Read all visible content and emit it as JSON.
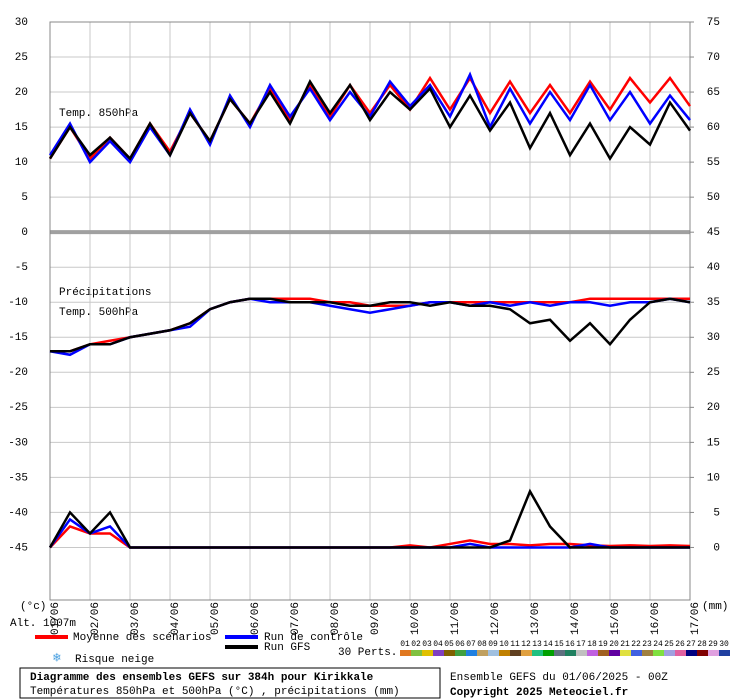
{
  "chart_data": {
    "type": "line",
    "labels": {
      "t850": "Temp. 850hPa",
      "precip": "Précipitations",
      "t500": "Temp. 500hPa",
      "y_unit": "(°c)",
      "y2_unit": "(mm)",
      "altitude": "Alt. 1007m",
      "snow": "Risque neige"
    },
    "x": [
      0,
      12,
      24,
      36,
      48,
      60,
      72,
      84,
      96,
      108,
      120,
      132,
      144,
      156,
      168,
      180,
      192,
      204,
      216,
      228,
      240,
      252,
      264,
      276,
      288,
      300,
      312,
      324,
      336,
      348,
      360,
      372,
      384
    ],
    "xlim": [
      0,
      384
    ],
    "xticks": [
      {
        "value": 0,
        "label": "01/06"
      },
      {
        "value": 24,
        "label": "02/06"
      },
      {
        "value": 48,
        "label": "03/06"
      },
      {
        "value": 72,
        "label": "04/06"
      },
      {
        "value": 96,
        "label": "05/06"
      },
      {
        "value": 120,
        "label": "06/06"
      },
      {
        "value": 144,
        "label": "07/06"
      },
      {
        "value": 168,
        "label": "08/06"
      },
      {
        "value": 192,
        "label": "09/06"
      },
      {
        "value": 216,
        "label": "10/06"
      },
      {
        "value": 240,
        "label": "11/06"
      },
      {
        "value": 264,
        "label": "12/06"
      },
      {
        "value": 288,
        "label": "13/06"
      },
      {
        "value": 312,
        "label": "14/06"
      },
      {
        "value": 336,
        "label": "15/06"
      },
      {
        "value": 360,
        "label": "16/06"
      },
      {
        "value": 384,
        "label": "17/06"
      }
    ],
    "ylim": [
      -52.5,
      30
    ],
    "yticks": [
      30,
      25,
      20,
      15,
      10,
      5,
      0,
      -5,
      -10,
      -15,
      -20,
      -25,
      -30,
      -35,
      -40,
      -45
    ],
    "y2lim": [
      -7.5,
      75
    ],
    "y2ticks": [
      75,
      70,
      65,
      60,
      55,
      50,
      45,
      40,
      35,
      30,
      25,
      20,
      15,
      10,
      5,
      0
    ],
    "grid": true,
    "series": [
      {
        "name": "Moyenne des scénarios",
        "color": "#ff0000",
        "t850": [
          10.5,
          15,
          10.5,
          13.5,
          10.5,
          15.5,
          11.5,
          17,
          13,
          19,
          15.5,
          20.5,
          16,
          21,
          16.5,
          21,
          17,
          21,
          17.5,
          22,
          17.5,
          22,
          17,
          21.5,
          17,
          21,
          17,
          21.5,
          17.5,
          22,
          18.5,
          22,
          18
        ],
        "t500": [
          -17,
          -17,
          -16,
          -15.5,
          -15,
          -14.5,
          -14,
          -13,
          -11,
          -10,
          -9.5,
          -9.5,
          -9.5,
          -9.5,
          -10,
          -10,
          -10.5,
          -10.5,
          -10.5,
          -10,
          -10,
          -10,
          -10,
          -10,
          -10,
          -10,
          -10,
          -9.5,
          -9.5,
          -9.5,
          -9.5,
          -9.5,
          -9.5
        ],
        "precip": [
          0,
          3,
          2,
          2,
          0,
          0,
          0,
          0,
          0,
          0,
          0,
          0,
          0,
          0,
          0,
          0,
          0,
          0,
          0.3,
          0,
          0.5,
          1,
          0.5,
          0.5,
          0.3,
          0.5,
          0.5,
          0.3,
          0.2,
          0.3,
          0.2,
          0.3,
          0.2
        ]
      },
      {
        "name": "Run de contrôle",
        "color": "#0000ff",
        "t850": [
          11,
          15.5,
          10,
          13,
          10,
          15,
          11,
          17.5,
          12.5,
          19.5,
          15,
          21,
          16.5,
          20.5,
          16,
          20,
          16.5,
          21.5,
          18,
          21,
          16.5,
          22.5,
          15,
          20.5,
          15.5,
          20,
          16,
          21,
          16,
          20,
          15.5,
          19.5,
          16
        ],
        "t500": [
          -17,
          -17.5,
          -16,
          -16,
          -15,
          -14.5,
          -14,
          -13.5,
          -11,
          -10,
          -9.5,
          -10,
          -10,
          -10,
          -10.5,
          -11,
          -11.5,
          -11,
          -10.5,
          -10,
          -10,
          -10.5,
          -10,
          -10.5,
          -10,
          -10.5,
          -10,
          -10,
          -10.5,
          -10,
          -10,
          -9.5,
          -10
        ],
        "precip": [
          0,
          4,
          2,
          3,
          0,
          0,
          0,
          0,
          0,
          0,
          0,
          0,
          0,
          0,
          0,
          0,
          0,
          0,
          0,
          0,
          0,
          0.5,
          0,
          0,
          0,
          0,
          0,
          0.5,
          0,
          0,
          0,
          0,
          0
        ]
      },
      {
        "name": "Run GFS",
        "color": "#000000",
        "t850": [
          10.5,
          15,
          11,
          13.5,
          10.5,
          15.5,
          11,
          17,
          13,
          19,
          15.5,
          20,
          15.5,
          21.5,
          17,
          21,
          16,
          20,
          17.5,
          20.5,
          15,
          19.5,
          14.5,
          18.5,
          12,
          17,
          11,
          15.5,
          10.5,
          15,
          12.5,
          18.5,
          14.5
        ],
        "t500": [
          -17,
          -17,
          -16,
          -16,
          -15,
          -14.5,
          -14,
          -13,
          -11,
          -10,
          -9.5,
          -9.5,
          -10,
          -10,
          -10,
          -10.5,
          -10.5,
          -10,
          -10,
          -10.5,
          -10,
          -10.5,
          -10.5,
          -11,
          -13,
          -12.5,
          -15.5,
          -13,
          -16,
          -12.5,
          -10,
          -9.5,
          -10
        ],
        "precip": [
          0,
          5,
          2,
          5,
          0,
          0,
          0,
          0,
          0,
          0,
          0,
          0,
          0,
          0,
          0,
          0,
          0,
          0,
          0,
          0,
          0,
          0,
          0,
          1,
          8,
          3,
          0,
          0,
          0,
          0,
          0,
          0,
          0
        ]
      }
    ],
    "perturbations": {
      "label": "30 Perts.",
      "members": [
        {
          "label": "01",
          "color": "#e07820"
        },
        {
          "label": "02",
          "color": "#80c040"
        },
        {
          "label": "03",
          "color": "#e0c000"
        },
        {
          "label": "04",
          "color": "#8040c0"
        },
        {
          "label": "05",
          "color": "#806000"
        },
        {
          "label": "06",
          "color": "#40a040"
        },
        {
          "label": "07",
          "color": "#2080e0"
        },
        {
          "label": "08",
          "color": "#c0a060"
        },
        {
          "label": "09",
          "color": "#a0c0e0"
        },
        {
          "label": "10",
          "color": "#c08000"
        },
        {
          "label": "11",
          "color": "#604020"
        },
        {
          "label": "12",
          "color": "#e0a040"
        },
        {
          "label": "13",
          "color": "#20c080"
        },
        {
          "label": "14",
          "color": "#00a000"
        },
        {
          "label": "15",
          "color": "#607080"
        },
        {
          "label": "16",
          "color": "#208060"
        },
        {
          "label": "17",
          "color": "#c0c0c0"
        },
        {
          "label": "18",
          "color": "#c060e0"
        },
        {
          "label": "19",
          "color": "#a06020"
        },
        {
          "label": "20",
          "color": "#6000a0"
        },
        {
          "label": "21",
          "color": "#e0e040"
        },
        {
          "label": "22",
          "color": "#4060e0"
        },
        {
          "label": "23",
          "color": "#a08040"
        },
        {
          "label": "24",
          "color": "#80e040"
        },
        {
          "label": "25",
          "color": "#a0a0e0"
        },
        {
          "label": "26",
          "color": "#e060a0"
        },
        {
          "label": "27",
          "color": "#000080"
        },
        {
          "label": "28",
          "color": "#800000"
        },
        {
          "label": "29",
          "color": "#e0a0e0"
        },
        {
          "label": "30",
          "color": "#2040a0"
        }
      ]
    },
    "footer": {
      "title": "Diagramme des ensembles GEFS sur 384h pour Kirikkale",
      "subtitle": "Températures 850hPa et 500hPa (°C) , précipitations (mm)",
      "run": "Ensemble GEFS du 01/06/2025 - 00Z",
      "copyright": "Copyright 2025 Meteociel.fr"
    }
  }
}
